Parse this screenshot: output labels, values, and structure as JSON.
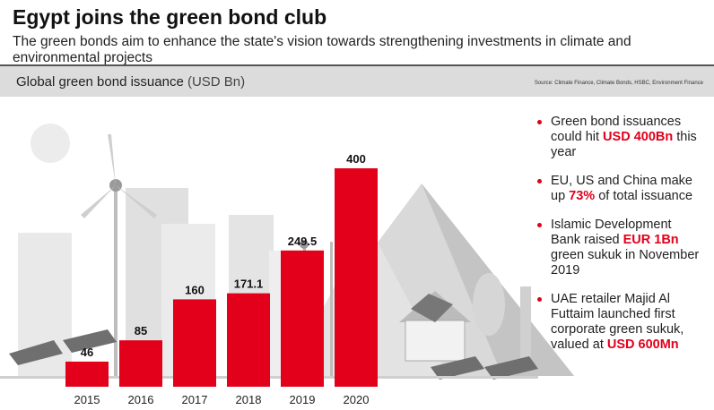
{
  "header": {
    "title": "Egypt joins the green bond club",
    "subtitle": "The green bonds aim to enhance the state's vision towards strengthening investments in climate and environmental projects"
  },
  "chart_data": {
    "type": "bar",
    "title": "Global green bond issuance",
    "unit": "(USD Bn)",
    "source": "Source: Climate Finance, Climate Bonds, HSBC, Environment Finance",
    "categories": [
      "2015",
      "2016",
      "2017",
      "2018",
      "2019",
      "2020"
    ],
    "values": [
      46,
      85,
      160,
      171.1,
      249.5,
      400
    ],
    "color": "#e2001a"
  },
  "bullets": [
    {
      "segments": [
        {
          "text": "Green bond issuances could hit "
        },
        {
          "text": "USD 400Bn",
          "highlight": true
        },
        {
          "text": " this year"
        }
      ]
    },
    {
      "segments": [
        {
          "text": "EU, US and China make up "
        },
        {
          "text": "73%",
          "highlight": true
        },
        {
          "text": " of total issuance"
        }
      ]
    },
    {
      "segments": [
        {
          "text": "Islamic Development Bank raised "
        },
        {
          "text": "EUR 1Bn",
          "highlight": true
        },
        {
          "text": " green sukuk in November 2019"
        }
      ]
    },
    {
      "segments": [
        {
          "text": "UAE retailer Majid Al Futtaim launched first corporate green sukuk, valued at "
        },
        {
          "text": "USD 600Mn",
          "highlight": true
        }
      ]
    }
  ]
}
